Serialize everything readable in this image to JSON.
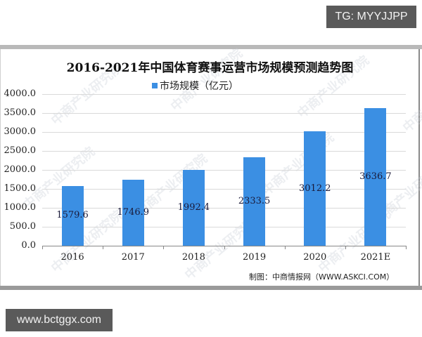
{
  "overlay": {
    "top_tag": "TG: MYYJJPP",
    "bottom_tag": "www.bctggx.com"
  },
  "chart": {
    "title": "2016-2021年中国体育赛事运营市场规模预测趋势图",
    "legend_label": "市场规模（亿元）",
    "source": "制图：中商情报网（WWW.ASKCI.COM）",
    "watermark": "中商产业研究院",
    "bar_color": "#3b8fe3"
  },
  "chart_data": {
    "type": "bar",
    "title": "2016-2021年中国体育赛事运营市场规模预测趋势图",
    "xlabel": "",
    "ylabel": "",
    "categories": [
      "2016",
      "2017",
      "2018",
      "2019",
      "2020",
      "2021E"
    ],
    "series": [
      {
        "name": "市场规模（亿元）",
        "values": [
          1579.6,
          1746.9,
          1992.4,
          2333.5,
          3012.2,
          3636.7
        ]
      }
    ],
    "value_labels": [
      "1579.6",
      "1746.9",
      "1992.4",
      "2333.5",
      "3012.2",
      "3636.7"
    ],
    "yticks": [
      "0.0",
      "500.0",
      "1000.0",
      "1500.0",
      "2000.0",
      "2500.0",
      "3000.0",
      "3500.0",
      "4000.0"
    ],
    "ylim": [
      0,
      4000
    ],
    "grid": true,
    "legend_position": "top",
    "annotation": "制图：中商情报网（WWW.ASKCI.COM）"
  }
}
